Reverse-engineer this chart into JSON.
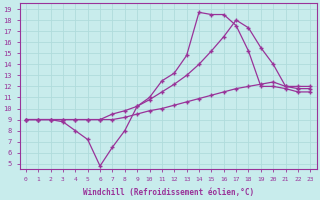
{
  "xlabel": "Windchill (Refroidissement éolien,°C)",
  "bg_color": "#c8ecec",
  "grid_color": "#b0dcdc",
  "line_color": "#993399",
  "xlim": [
    -0.5,
    23.5
  ],
  "ylim": [
    4.5,
    19.5
  ],
  "xticks": [
    0,
    1,
    2,
    3,
    4,
    5,
    6,
    7,
    8,
    9,
    10,
    11,
    12,
    13,
    14,
    15,
    16,
    17,
    18,
    19,
    20,
    21,
    22,
    23
  ],
  "yticks": [
    5,
    6,
    7,
    8,
    9,
    10,
    11,
    12,
    13,
    14,
    15,
    16,
    17,
    18,
    19
  ],
  "line1_x": [
    0,
    1,
    2,
    3,
    4,
    5,
    6,
    7,
    8,
    9,
    10,
    11,
    12,
    13,
    14,
    15,
    16,
    17,
    18,
    19,
    20,
    21,
    22,
    23
  ],
  "line1_y": [
    9,
    9,
    9,
    8.8,
    8.0,
    7.2,
    4.8,
    6.5,
    8.0,
    10.2,
    11.0,
    12.5,
    13.2,
    14.8,
    18.7,
    18.5,
    18.5,
    17.5,
    15.2,
    12.0,
    12.0,
    11.8,
    11.5,
    11.5
  ],
  "line2_x": [
    0,
    1,
    2,
    3,
    4,
    5,
    6,
    7,
    8,
    9,
    10,
    11,
    12,
    13,
    14,
    15,
    16,
    17,
    18,
    19,
    20,
    21,
    22,
    23
  ],
  "line2_y": [
    9.0,
    9.0,
    9.0,
    9.0,
    9.0,
    9.0,
    9.0,
    9.0,
    9.2,
    9.5,
    9.8,
    10.0,
    10.3,
    10.6,
    10.9,
    11.2,
    11.5,
    11.8,
    12.0,
    12.2,
    12.4,
    12.0,
    11.8,
    11.8
  ],
  "line3_x": [
    0,
    1,
    2,
    3,
    4,
    5,
    6,
    7,
    8,
    9,
    10,
    11,
    12,
    13,
    14,
    15,
    16,
    17,
    18,
    19,
    20,
    21,
    22,
    23
  ],
  "line3_y": [
    9.0,
    9.0,
    9.0,
    9.0,
    9.0,
    9.0,
    9.0,
    9.5,
    9.8,
    10.2,
    10.8,
    11.5,
    12.2,
    13.0,
    14.0,
    15.2,
    16.5,
    18.0,
    17.3,
    15.5,
    14.0,
    12.0,
    12.0,
    12.0
  ]
}
